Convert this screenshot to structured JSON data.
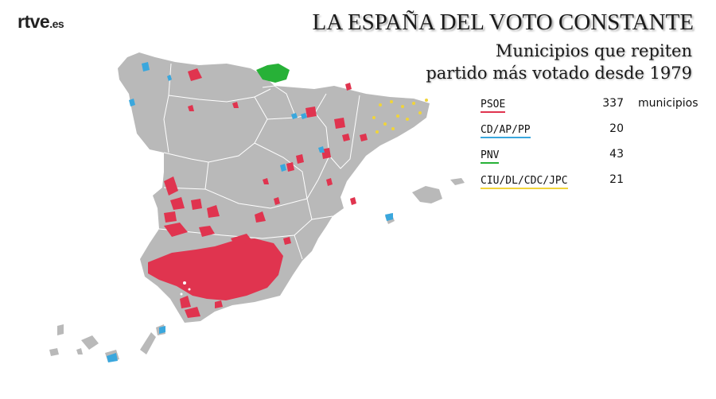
{
  "brand": {
    "name": "rtve",
    "suffix": ".es"
  },
  "title": "LA ESPAÑA DEL VOTO CONSTANTE",
  "subtitle": {
    "line1": "Municipios que repiten",
    "line2": "partido más votado desde 1979"
  },
  "legend": {
    "unit": "municipios",
    "items": [
      {
        "label": "PSOE",
        "count": "337",
        "color": "#e0344f"
      },
      {
        "label": "CD/AP/PP",
        "count": "20",
        "color": "#3aa7dd"
      },
      {
        "label": "PNV",
        "count": "43",
        "color": "#27b137"
      },
      {
        "label": "CIU/DL/CDC/JPC",
        "count": "21",
        "color": "#f0d43a"
      }
    ]
  },
  "map": {
    "land_color": "#b9b9b9",
    "border_color": "#ffffff"
  }
}
